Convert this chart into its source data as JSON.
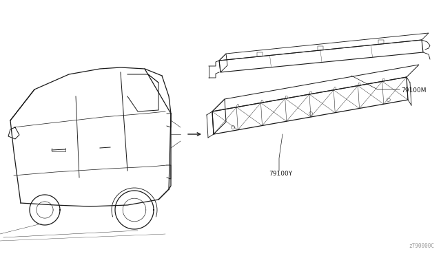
{
  "background_color": "#ffffff",
  "part_label_1": "79100M",
  "part_label_2": "79100Y",
  "diagram_code": "z790000C",
  "line_color": "#1a1a1a",
  "text_color": "#1a1a1a",
  "fig_width": 6.4,
  "fig_height": 3.72,
  "dpi": 100
}
